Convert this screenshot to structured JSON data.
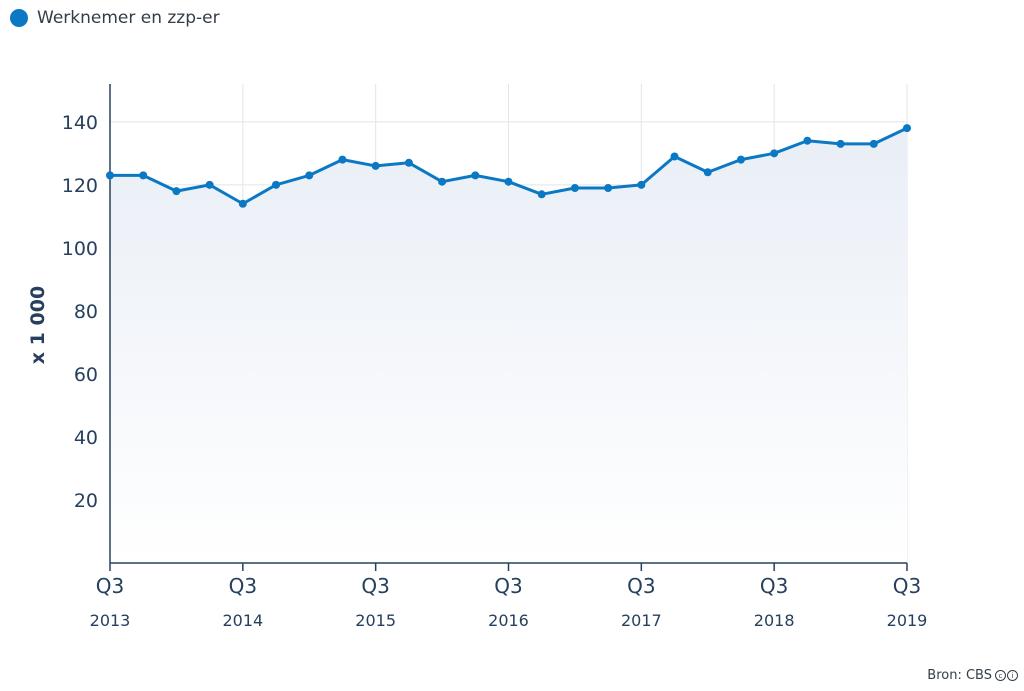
{
  "legend": {
    "label": "Werknemer en zzp-er",
    "color": "#0b78c4"
  },
  "source": {
    "text": "Bron: CBS",
    "license_icons": [
      "cc-icon",
      "by-icon"
    ]
  },
  "colors": {
    "line": "#0b78c4",
    "grid": "#e1e5ea",
    "axis": "#27405e",
    "area_top": "#e9eef6"
  },
  "chart_data": {
    "type": "area",
    "ylabel": "x 1 000",
    "ylim": [
      0,
      152
    ],
    "yticks": [
      20,
      40,
      60,
      80,
      100,
      120,
      140
    ],
    "grid": true,
    "legend_position": "top-left",
    "x_tick_labels": [
      {
        "quarter": "Q3",
        "year": "2013",
        "index": 0
      },
      {
        "quarter": "Q3",
        "year": "2014",
        "index": 4
      },
      {
        "quarter": "Q3",
        "year": "2015",
        "index": 8
      },
      {
        "quarter": "Q3",
        "year": "2016",
        "index": 12
      },
      {
        "quarter": "Q3",
        "year": "2017",
        "index": 16
      },
      {
        "quarter": "Q3",
        "year": "2018",
        "index": 20
      },
      {
        "quarter": "Q3",
        "year": "2019",
        "index": 24
      }
    ],
    "x": [
      "2013 Q3",
      "2013 Q4",
      "2014 Q1",
      "2014 Q2",
      "2014 Q3",
      "2014 Q4",
      "2015 Q1",
      "2015 Q2",
      "2015 Q3",
      "2015 Q4",
      "2016 Q1",
      "2016 Q2",
      "2016 Q3",
      "2016 Q4",
      "2017 Q1",
      "2017 Q2",
      "2017 Q3",
      "2017 Q4",
      "2018 Q1",
      "2018 Q2",
      "2018 Q3",
      "2018 Q4",
      "2019 Q1",
      "2019 Q2",
      "2019 Q3"
    ],
    "series": [
      {
        "name": "Werknemer en zzp-er",
        "values": [
          123,
          123,
          118,
          120,
          114,
          120,
          123,
          128,
          126,
          127,
          121,
          123,
          121,
          117,
          119,
          119,
          120,
          129,
          124,
          128,
          130,
          134,
          133,
          133,
          138
        ]
      }
    ]
  }
}
